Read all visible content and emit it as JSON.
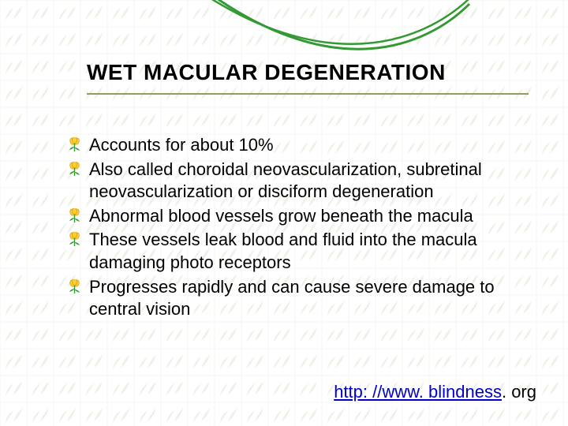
{
  "title": "WET MACULAR DEGENERATION",
  "title_fontsize": 28,
  "title_color": "#000000",
  "underline_color": "#999966",
  "bullets": [
    "Accounts for about 10%",
    "Also called choroidal neovascularization, subretinal neovascularization or disciform degeneration",
    "Abnormal blood vessels grow beneath the macula",
    "These vessels leak blood and fluid into the macula damaging photo receptors",
    "Progresses rapidly and can cause severe damage to central vision"
  ],
  "bullet_fontsize": 22,
  "bullet_text_color": "#000000",
  "bullet_icon_colors": {
    "petal": "#ffcc33",
    "petal_stroke": "#cc9900",
    "leaf": "#339933"
  },
  "footer": {
    "linked_text": "http: //www. blindness",
    "plain_text": ". org",
    "link_color": "#0000cc",
    "plain_color": "#000000"
  },
  "background_pattern": {
    "grid_color": "#bfbf99",
    "cell": 34,
    "leaf_color": "#7a9a4a"
  },
  "swoosh": {
    "stroke_color": "#339933",
    "stroke_width": 3
  }
}
